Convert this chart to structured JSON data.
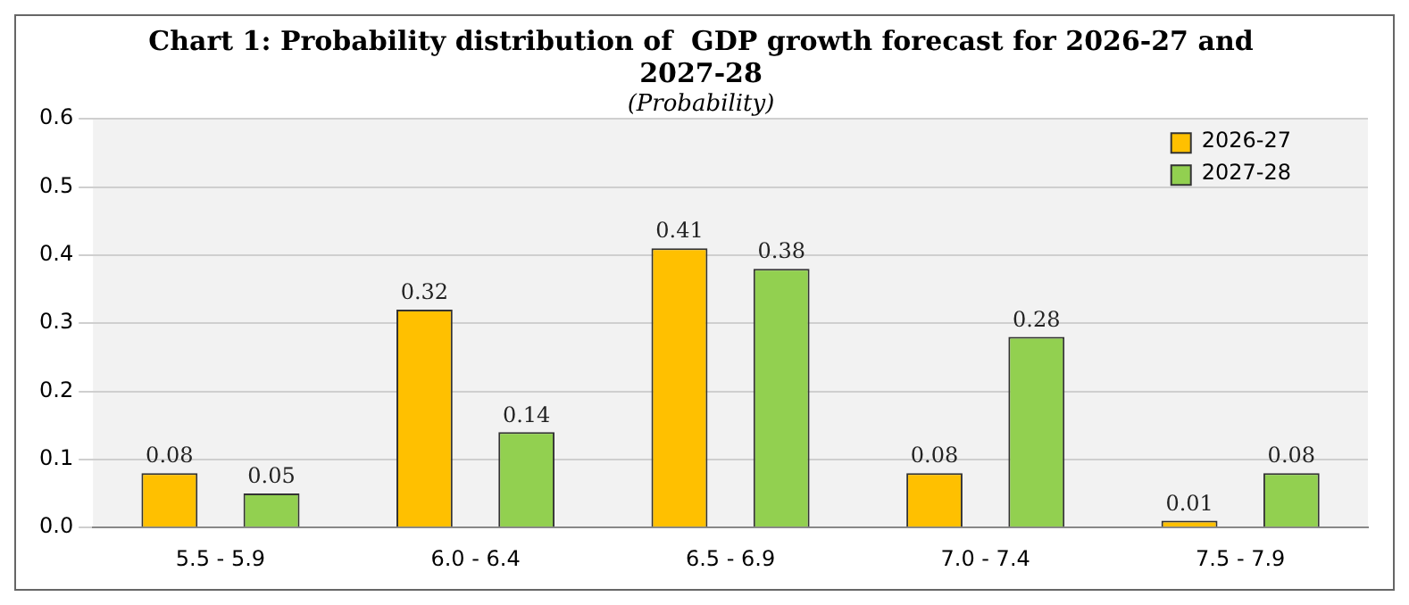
{
  "chart_data": {
    "type": "bar",
    "title": "Chart 1: Probability distribution of  GDP growth forecast for 2026-27 and 2027-28",
    "subtitle": "(Probability)",
    "categories": [
      "5.5 - 5.9",
      "6.0 - 6.4",
      "6.5 - 6.9",
      "7.0 - 7.4",
      "7.5 - 7.9"
    ],
    "series": [
      {
        "name": "2026-27",
        "color": "#ffc000",
        "values": [
          0.08,
          0.32,
          0.41,
          0.08,
          0.01
        ]
      },
      {
        "name": "2027-28",
        "color": "#92d050",
        "values": [
          0.05,
          0.14,
          0.38,
          0.28,
          0.08
        ]
      }
    ],
    "ylim": [
      0,
      0.6
    ],
    "yticks": [
      {
        "value": 0,
        "label": "0.0"
      },
      0.1,
      0.2,
      0.3,
      0.4,
      0.5,
      0.6
    ],
    "grid": "y",
    "legend": "top right",
    "data_labels": true
  }
}
